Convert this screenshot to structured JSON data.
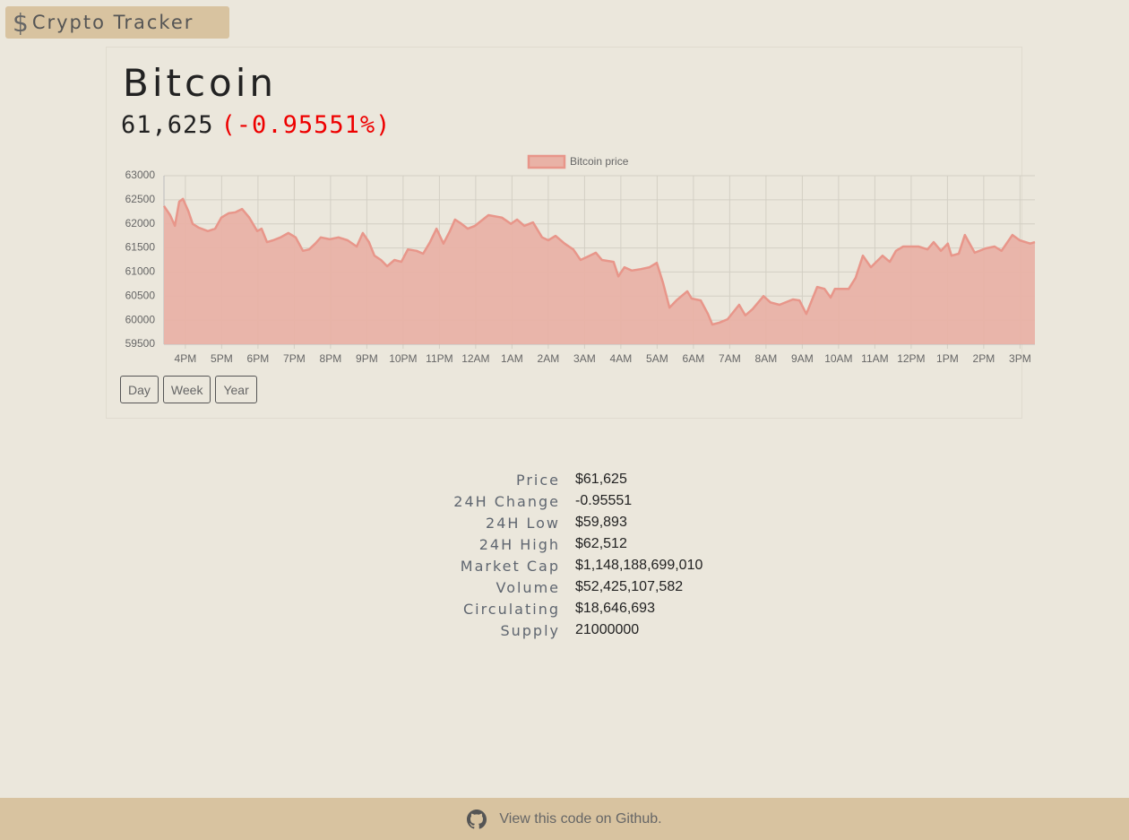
{
  "header": {
    "title": "Crypto Tracker"
  },
  "coin": {
    "name": "Bitcoin",
    "price": "61,625",
    "change": "(-0.95551%)"
  },
  "chart_data": {
    "type": "line",
    "x": [
      15.41,
      15.58,
      15.71,
      15.83,
      15.93,
      16.08,
      16.2,
      16.37,
      16.62,
      16.82,
      16.99,
      17.19,
      17.38,
      17.56,
      17.76,
      17.98,
      18.1,
      18.25,
      18.42,
      18.62,
      18.84,
      19.04,
      19.24,
      19.41,
      19.58,
      19.73,
      19.98,
      20.22,
      20.47,
      20.72,
      20.89,
      21.06,
      21.21,
      21.39,
      21.56,
      21.76,
      21.95,
      22.13,
      22.37,
      22.55,
      22.74,
      22.92,
      23.11,
      23.29,
      23.43,
      23.61,
      23.78,
      23.98,
      24.35,
      24.72,
      24.97,
      25.14,
      25.34,
      25.58,
      25.83,
      26.0,
      26.2,
      26.45,
      26.69,
      26.89,
      27.14,
      27.31,
      27.48,
      27.8,
      27.93,
      28.1,
      28.3,
      28.55,
      28.79,
      28.99,
      29.16,
      29.34,
      29.53,
      29.83,
      29.95,
      30.2,
      30.4,
      30.52,
      30.72,
      30.94,
      31.26,
      31.43,
      31.63,
      31.93,
      32.12,
      32.37,
      32.74,
      32.92,
      33.11,
      33.41,
      33.61,
      33.78,
      33.9,
      34.28,
      34.47,
      34.67,
      34.89,
      35.21,
      35.41,
      35.58,
      35.78,
      35.95,
      36.2,
      36.45,
      36.62,
      36.82,
      37.01,
      37.11,
      37.31,
      37.48,
      37.75,
      38.05,
      38.3,
      38.49,
      38.79,
      38.99,
      39.28,
      39.41
    ],
    "series": [
      {
        "name": "Bitcoin price",
        "color": "#e8968a",
        "fill": "#e9b2a6",
        "values": [
          62370,
          62180,
          61960,
          62460,
          62520,
          62270,
          62000,
          61920,
          61850,
          61900,
          62130,
          62220,
          62240,
          62310,
          62130,
          61850,
          61900,
          61620,
          61660,
          61720,
          61810,
          61720,
          61440,
          61470,
          61590,
          61720,
          61680,
          61720,
          61660,
          61530,
          61810,
          61620,
          61340,
          61250,
          61120,
          61250,
          61210,
          61470,
          61440,
          61380,
          61620,
          61900,
          61590,
          61850,
          62090,
          62000,
          61900,
          61960,
          62180,
          62130,
          62000,
          62090,
          61960,
          62030,
          61720,
          61660,
          61750,
          61590,
          61470,
          61250,
          61340,
          61400,
          61250,
          61210,
          60910,
          61100,
          61030,
          61060,
          61100,
          61190,
          60780,
          60260,
          60410,
          60600,
          60450,
          60410,
          60130,
          59910,
          59950,
          60020,
          60320,
          60100,
          60230,
          60500,
          60370,
          60320,
          60430,
          60410,
          60130,
          60690,
          60650,
          60470,
          60650,
          60650,
          60880,
          61340,
          61100,
          61340,
          61210,
          61440,
          61530,
          61530,
          61530,
          61470,
          61620,
          61440,
          61590,
          61340,
          61380,
          61770,
          61400,
          61490,
          61530,
          61440,
          61770,
          61660,
          61590,
          61620
        ]
      }
    ],
    "xlim": [
      15.41,
      39.41
    ],
    "xticks": [
      {
        "value": 16,
        "label": "4PM"
      },
      {
        "value": 17,
        "label": "5PM"
      },
      {
        "value": 18,
        "label": "6PM"
      },
      {
        "value": 19,
        "label": "7PM"
      },
      {
        "value": 20,
        "label": "8PM"
      },
      {
        "value": 21,
        "label": "9PM"
      },
      {
        "value": 22,
        "label": "10PM"
      },
      {
        "value": 23,
        "label": "11PM"
      },
      {
        "value": 24,
        "label": "12AM"
      },
      {
        "value": 25,
        "label": "1AM"
      },
      {
        "value": 26,
        "label": "2AM"
      },
      {
        "value": 27,
        "label": "3AM"
      },
      {
        "value": 28,
        "label": "4AM"
      },
      {
        "value": 29,
        "label": "5AM"
      },
      {
        "value": 30,
        "label": "6AM"
      },
      {
        "value": 31,
        "label": "7AM"
      },
      {
        "value": 32,
        "label": "8AM"
      },
      {
        "value": 33,
        "label": "9AM"
      },
      {
        "value": 34,
        "label": "10AM"
      },
      {
        "value": 35,
        "label": "11AM"
      },
      {
        "value": 36,
        "label": "12PM"
      },
      {
        "value": 37,
        "label": "1PM"
      },
      {
        "value": 38,
        "label": "2PM"
      },
      {
        "value": 39,
        "label": "3PM"
      }
    ],
    "ylim": [
      59500,
      63000
    ],
    "yticks": [
      59500,
      60000,
      60500,
      61000,
      61500,
      62000,
      62500,
      63000
    ],
    "grid": true,
    "legend": "top"
  },
  "buttons": [
    "Day",
    "Week",
    "Year"
  ],
  "stats": {
    "rows": [
      [
        "Price",
        "$61,625"
      ],
      [
        "24H Change",
        "-0.95551"
      ],
      [
        "24H Low",
        "$59,893"
      ],
      [
        "24H High",
        "$62,512"
      ],
      [
        "Market Cap",
        "$1,148,188,699,010"
      ],
      [
        "Volume",
        "$52,425,107,582"
      ],
      [
        "Circulating",
        "$18,646,693"
      ],
      [
        "Supply",
        "21000000"
      ]
    ]
  },
  "footer": {
    "text": "View this code on Github."
  }
}
